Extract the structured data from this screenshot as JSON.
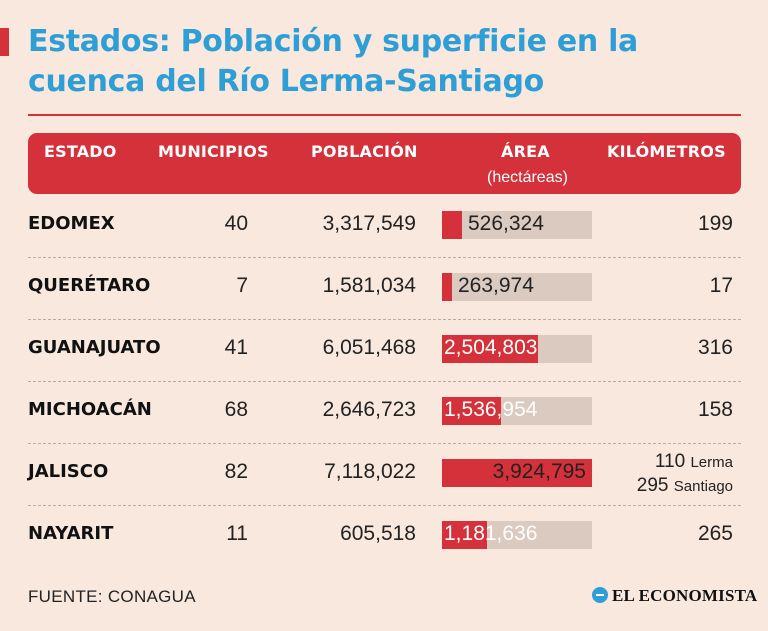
{
  "title": "Estados: Población y superficie en la cuenca del Río Lerma-Santiago",
  "source": "FUENTE: CONAGUA",
  "logo": "EL ECONOMISTA",
  "colors": {
    "accent": "#d5313a",
    "title": "#2e9fd6",
    "background": "#f9e8dd",
    "bar_track": "#dbcac0"
  },
  "table": {
    "headers": {
      "estado": "ESTADO",
      "municipios": "MUNICIPIOS",
      "poblacion": "POBLACIÓN",
      "area": "ÁREA",
      "area_unit": "(hectáreas)",
      "kilometros": "KILÓMETROS"
    }
  },
  "chart_data": {
    "type": "table",
    "columns": [
      "ESTADO",
      "MUNICIPIOS",
      "POBLACIÓN",
      "ÁREA (hectáreas)",
      "KILÓMETROS"
    ],
    "bar_max": 3924795,
    "rows": [
      {
        "estado": "EDOMEX",
        "municipios": "40",
        "poblacion": "3,317,549",
        "area_label": "526,324",
        "area": 526324,
        "km": "199"
      },
      {
        "estado": "QUERÉTARO",
        "municipios": "7",
        "poblacion": "1,581,034",
        "area_label": "263,974",
        "area": 263974,
        "km": "17"
      },
      {
        "estado": "GUANAJUATO",
        "municipios": "41",
        "poblacion": "6,051,468",
        "area_label": "2,504,803",
        "area": 2504803,
        "km": "316"
      },
      {
        "estado": "MICHOACÁN",
        "municipios": "68",
        "poblacion": "2,646,723",
        "area_label": "1,536,954",
        "area": 1536954,
        "km": "158"
      },
      {
        "estado": "JALISCO",
        "municipios": "82",
        "poblacion": "7,118,022",
        "area_label": "3,924,795",
        "area": 3924795,
        "km_lines": [
          {
            "value": "110",
            "label": "Lerma"
          },
          {
            "value": "295",
            "label": "Santiago"
          }
        ]
      },
      {
        "estado": "NAYARIT",
        "municipios": "11",
        "poblacion": "605,518",
        "area_label": "1,181,636",
        "area": 1181636,
        "km": "265"
      }
    ]
  }
}
